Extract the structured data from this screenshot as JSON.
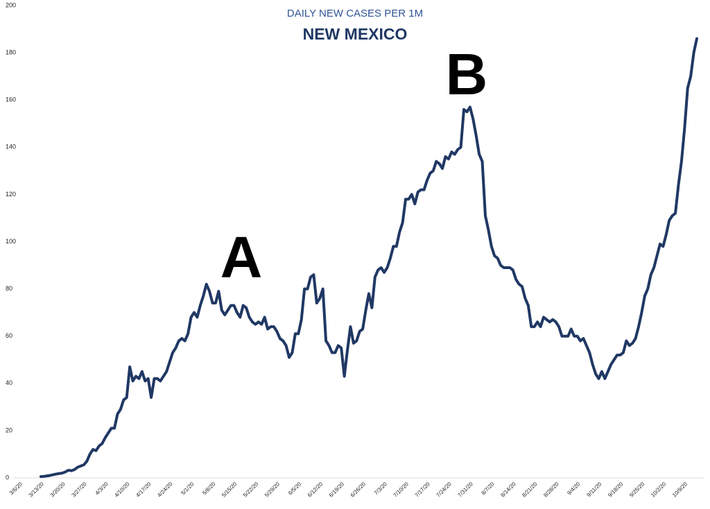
{
  "chart_data": {
    "type": "line",
    "title": "DAILY NEW CASES PER 1M",
    "subtitle": "NEW MEXICO",
    "annotations": [
      {
        "text": "A"
      },
      {
        "text": "B"
      }
    ],
    "color": "#203864",
    "ylim": [
      0,
      200
    ],
    "yticks": [
      0,
      20,
      40,
      60,
      80,
      100,
      120,
      140,
      160,
      180,
      200
    ],
    "grid": false,
    "categories": [
      "3/6/20",
      null,
      null,
      null,
      null,
      null,
      null,
      "3/13/20",
      null,
      null,
      null,
      null,
      null,
      null,
      "3/20/20",
      null,
      null,
      null,
      null,
      null,
      null,
      "3/27/20",
      null,
      null,
      null,
      null,
      null,
      null,
      "4/3/20",
      null,
      null,
      null,
      null,
      null,
      null,
      "4/10/20",
      null,
      null,
      null,
      null,
      null,
      null,
      "4/17/20",
      null,
      null,
      null,
      null,
      null,
      null,
      "4/24/20",
      null,
      null,
      null,
      null,
      null,
      null,
      "5/1/20",
      null,
      null,
      null,
      null,
      null,
      null,
      "5/8/20",
      null,
      null,
      null,
      null,
      null,
      null,
      "5/15/20",
      null,
      null,
      null,
      null,
      null,
      null,
      "5/22/20",
      null,
      null,
      null,
      null,
      null,
      null,
      "5/29/20",
      null,
      null,
      null,
      null,
      null,
      null,
      "6/5/20",
      null,
      null,
      null,
      null,
      null,
      null,
      "6/12/20",
      null,
      null,
      null,
      null,
      null,
      null,
      "6/19/20",
      null,
      null,
      null,
      null,
      null,
      null,
      "6/26/20",
      null,
      null,
      null,
      null,
      null,
      null,
      "7/3/20",
      null,
      null,
      null,
      null,
      null,
      null,
      "7/10/20",
      null,
      null,
      null,
      null,
      null,
      null,
      "7/17/20",
      null,
      null,
      null,
      null,
      null,
      null,
      "7/24/20",
      null,
      null,
      null,
      null,
      null,
      null,
      "7/31/20",
      null,
      null,
      null,
      null,
      null,
      null,
      "8/7/20",
      null,
      null,
      null,
      null,
      null,
      null,
      "8/14/20",
      null,
      null,
      null,
      null,
      null,
      null,
      "8/21/20",
      null,
      null,
      null,
      null,
      null,
      null,
      "8/28/20",
      null,
      null,
      null,
      null,
      null,
      null,
      "9/4/20",
      null,
      null,
      null,
      null,
      null,
      null,
      "9/11/20",
      null,
      null,
      null,
      null,
      null,
      null,
      "9/18/20",
      null,
      null,
      null,
      null,
      null,
      null,
      "9/25/20",
      null,
      null,
      null,
      null,
      null,
      null,
      "10/2/20",
      null,
      null,
      null,
      null,
      null,
      null,
      "10/9/20",
      null,
      null,
      null,
      null
    ],
    "values": [
      null,
      null,
      null,
      null,
      null,
      null,
      null,
      0.5,
      0.6,
      0.8,
      1,
      1.3,
      1.6,
      1.8,
      2,
      2.5,
      3.2,
      3,
      3.5,
      4.5,
      5,
      5.5,
      7,
      10,
      12,
      11.5,
      13.5,
      14.5,
      17,
      19,
      21,
      21,
      27,
      29,
      33,
      34,
      47,
      41,
      43,
      42,
      45,
      41,
      42,
      34,
      42,
      42,
      41,
      43,
      45,
      49,
      53,
      55,
      58,
      59,
      58,
      61,
      68,
      70,
      68,
      73,
      77,
      82,
      79,
      74,
      74,
      79,
      71,
      69,
      71,
      73,
      73,
      70,
      68,
      73,
      72,
      68,
      66,
      65,
      66,
      65,
      68,
      63,
      64,
      64,
      62,
      59,
      58,
      56,
      51,
      53,
      61,
      61,
      67,
      80,
      80,
      85,
      86,
      74,
      76,
      80,
      58,
      56,
      53,
      53,
      56,
      55,
      43,
      54,
      64,
      57,
      58,
      62,
      63,
      71,
      78,
      72,
      85,
      88,
      89,
      87,
      89,
      93,
      98,
      98,
      104,
      108,
      118,
      118,
      120,
      116,
      121,
      122,
      122,
      126,
      129,
      130,
      134,
      133,
      131,
      136,
      135,
      138,
      137,
      139,
      140,
      156,
      155,
      157,
      152,
      145,
      137,
      134,
      111,
      105,
      98,
      94,
      93,
      90,
      89,
      89,
      89,
      88,
      84,
      82,
      81,
      76,
      73,
      64,
      64,
      66,
      64,
      68,
      67,
      66,
      67,
      66,
      64,
      60,
      60,
      60,
      63,
      60,
      60,
      58,
      59,
      56,
      53,
      48,
      44,
      42,
      45,
      42,
      45,
      48,
      50,
      52,
      52,
      53,
      58,
      56,
      57,
      59,
      64,
      70,
      77,
      80,
      86,
      89,
      94,
      99,
      98,
      103,
      109,
      111,
      112,
      124,
      134,
      148,
      165,
      170,
      180,
      186
    ]
  }
}
